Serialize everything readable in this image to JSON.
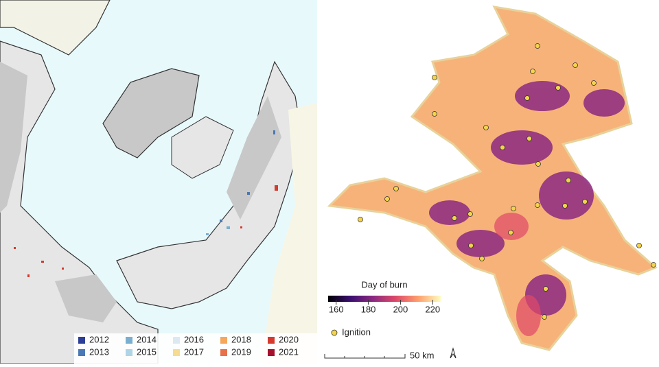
{
  "left_map": {
    "legend": [
      {
        "label": "2012",
        "color": "#2c3e98"
      },
      {
        "label": "2013",
        "color": "#4a78b5"
      },
      {
        "label": "2014",
        "color": "#7aaed0"
      },
      {
        "label": "2015",
        "color": "#aed4e6"
      },
      {
        "label": "2016",
        "color": "#dde9f0"
      },
      {
        "label": "2017",
        "color": "#f5dc90"
      },
      {
        "label": "2018",
        "color": "#f6a75c"
      },
      {
        "label": "2019",
        "color": "#e8704a"
      },
      {
        "label": "2020",
        "color": "#d63a2e"
      },
      {
        "label": "2021",
        "color": "#a5102c"
      }
    ]
  },
  "right_map": {
    "colorbar": {
      "title": "Day of burn",
      "range": [
        155,
        225
      ],
      "ticks": [
        160,
        180,
        200,
        220
      ],
      "colors": [
        "#000004",
        "#3b0f70",
        "#8c2981",
        "#de4968",
        "#fe9f6d",
        "#fcfdbf"
      ]
    },
    "ignition_label": "Ignition",
    "scale_label": "50 km"
  }
}
